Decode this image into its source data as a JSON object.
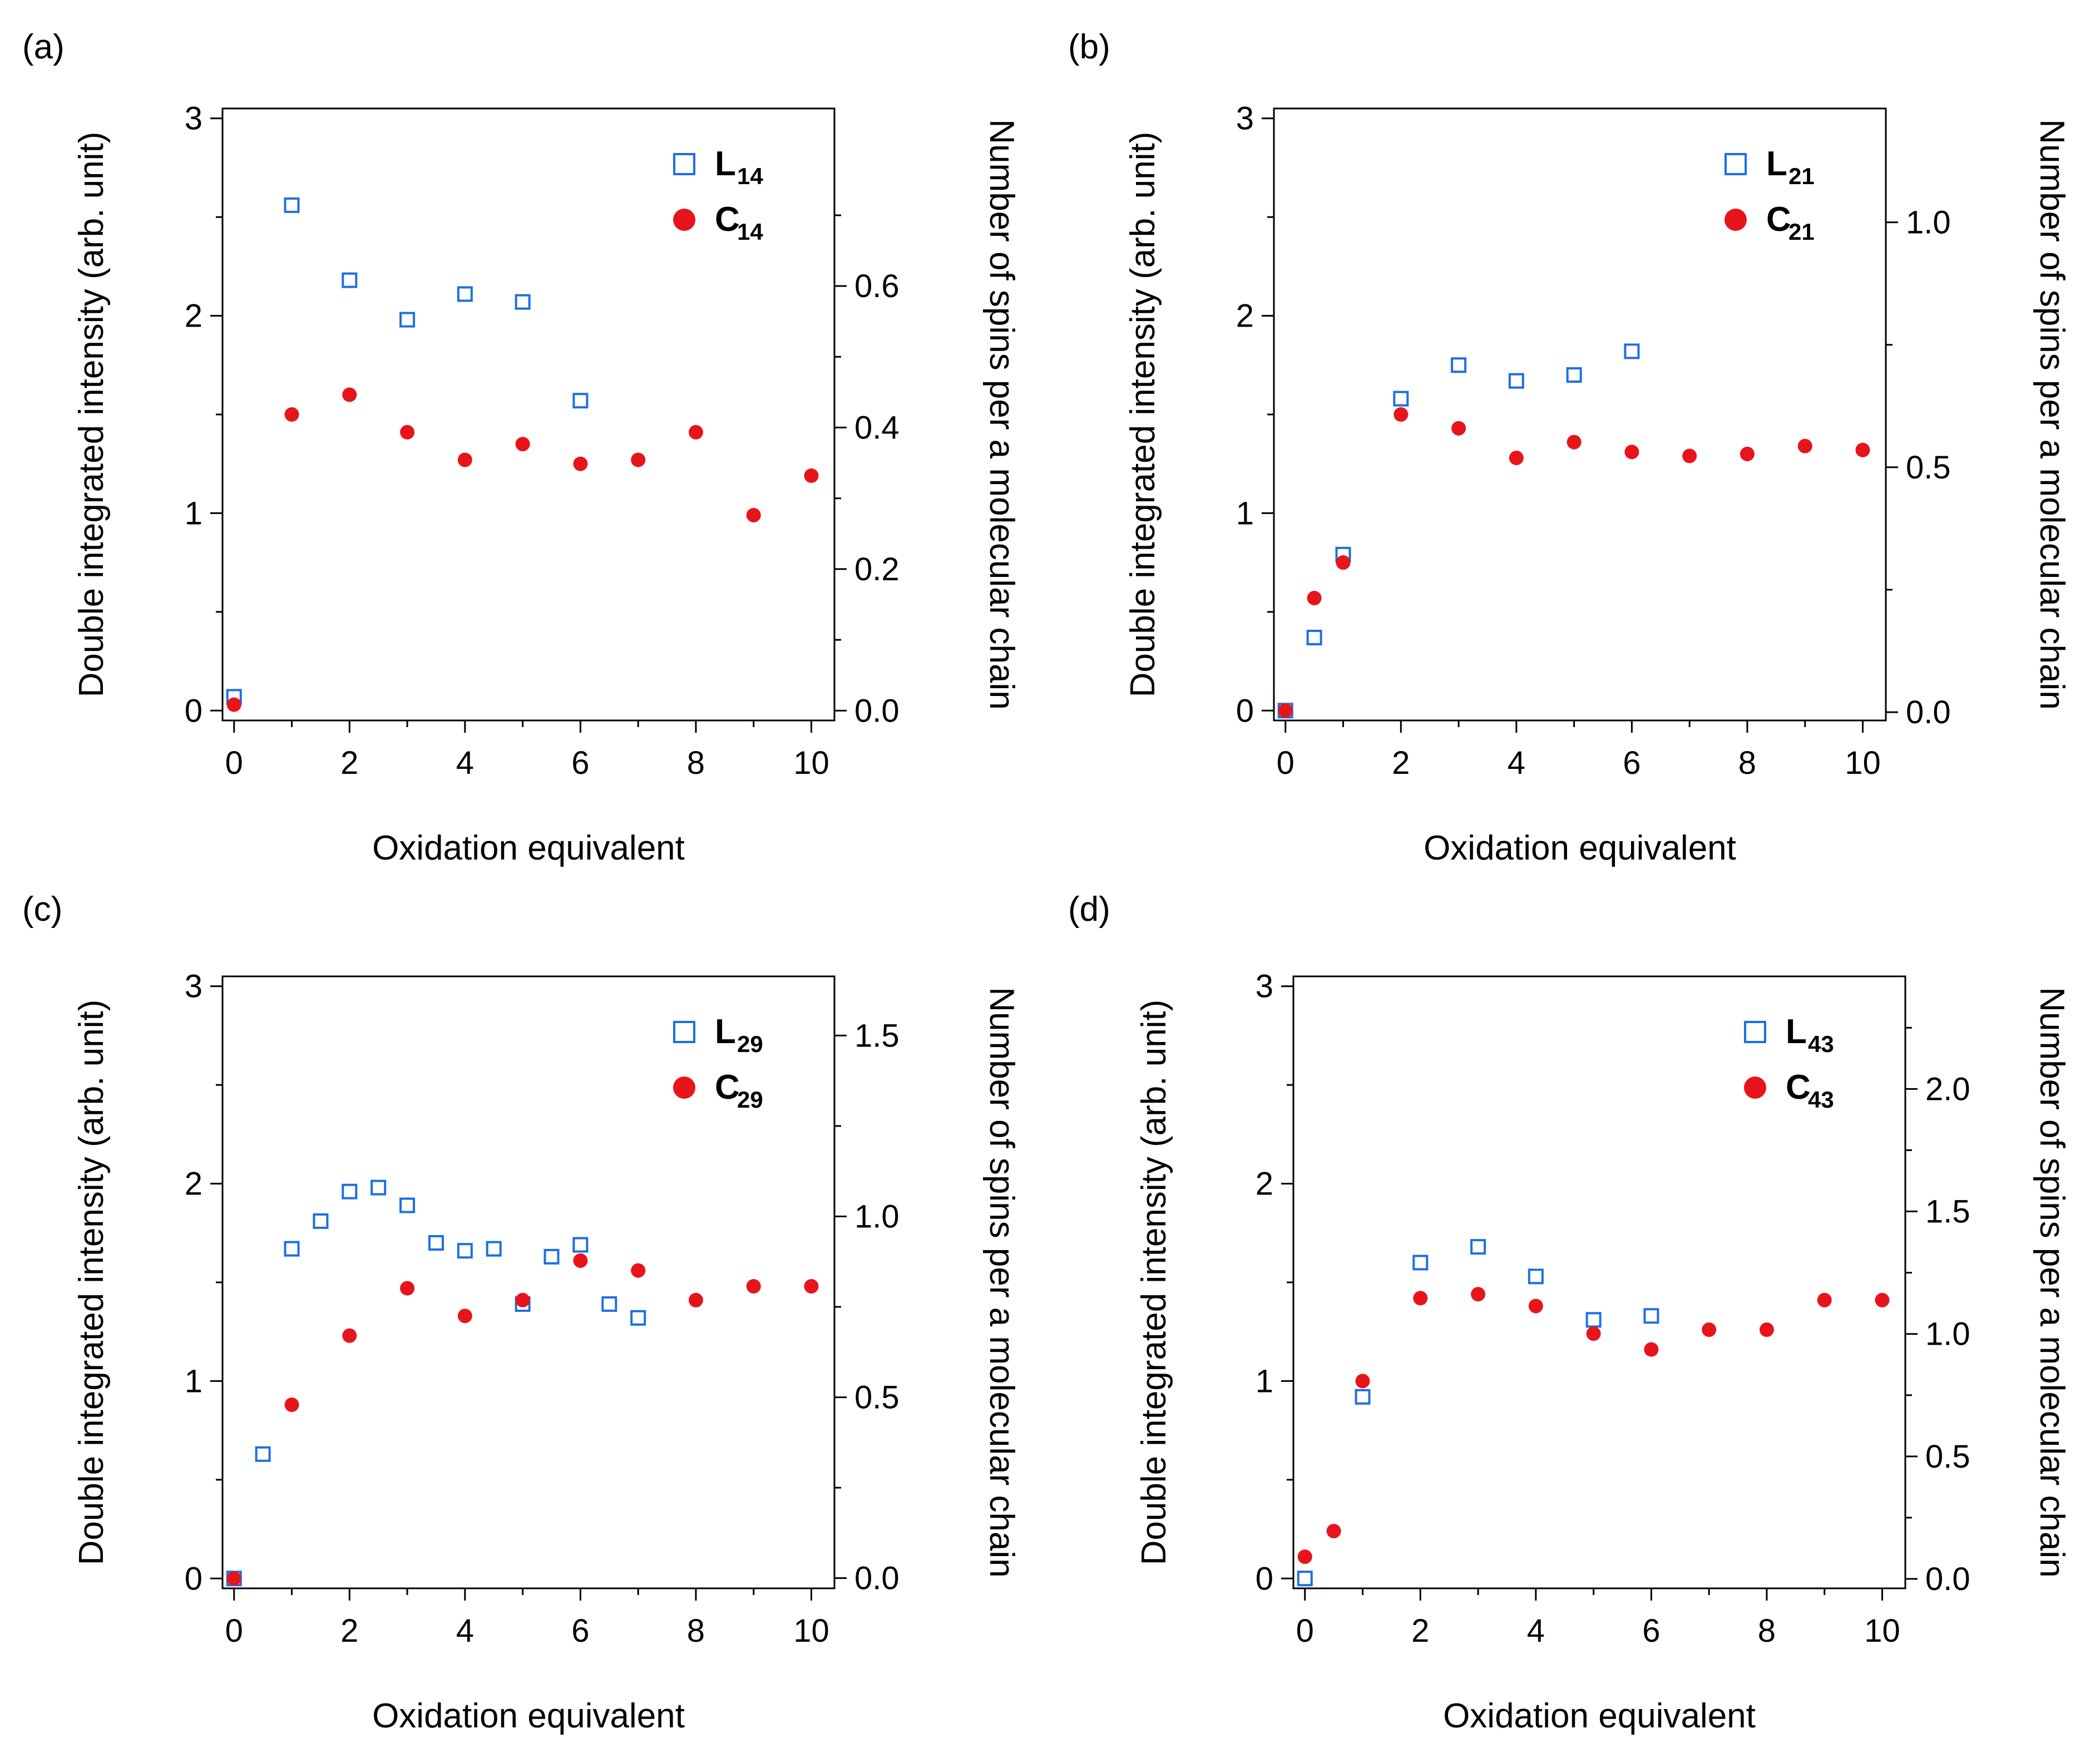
{
  "colors": {
    "L": "#1c6fe6",
    "C": "#e8141b",
    "axis": "#000000"
  },
  "chart_data": [
    {
      "type": "scatter",
      "panel": "(a)",
      "xlabel": "Oxidation equivalent",
      "ylabel": "Double integrated intensity (arb. unit)",
      "y2label": "Number of spins per a molecular chain",
      "xlim": [
        -0.2,
        10.4
      ],
      "ylim": [
        -0.05,
        3.05
      ],
      "y2lim": [
        -0.0139,
        0.8509
      ],
      "xticks": [
        "0",
        "2",
        "4",
        "6",
        "8",
        "10"
      ],
      "yticks": [
        "0",
        "1",
        "2",
        "3"
      ],
      "y2ticks": [
        "0.0",
        "0.2",
        "0.4",
        "0.6"
      ],
      "y2major": [
        0.0,
        0.2,
        0.4,
        0.6
      ],
      "y2minor": [
        0.1,
        0.3,
        0.5,
        0.7
      ],
      "series": [
        {
          "name": "L",
          "sub": "14",
          "marker": "open-square",
          "x": [
            0,
            1,
            2,
            3,
            4,
            5,
            6
          ],
          "y": [
            0.07,
            2.56,
            2.18,
            1.98,
            2.11,
            2.07,
            1.57
          ]
        },
        {
          "name": "C",
          "sub": "14",
          "marker": "filled-circle",
          "x": [
            0,
            1,
            2,
            3,
            4,
            5,
            6,
            7,
            8,
            9,
            10
          ],
          "y": [
            0.03,
            1.5,
            1.6,
            1.41,
            1.27,
            1.35,
            1.25,
            1.27,
            1.41,
            0.99,
            1.19
          ]
        }
      ]
    },
    {
      "type": "scatter",
      "panel": "(b)",
      "xlabel": "Oxidation equivalent",
      "ylabel": "Double integrated intensity (arb. unit)",
      "y2label": "Number of spins per a molecular chain",
      "xlim": [
        -0.2,
        10.4
      ],
      "ylim": [
        -0.05,
        3.05
      ],
      "y2lim": [
        -0.0169,
        1.2324
      ],
      "xticks": [
        "0",
        "2",
        "4",
        "6",
        "8",
        "10"
      ],
      "yticks": [
        "0",
        "1",
        "2",
        "3"
      ],
      "y2ticks": [
        "0.0",
        "0.5",
        "1.0"
      ],
      "y2major": [
        0.0,
        0.5,
        1.0
      ],
      "y2minor": [
        0.25,
        0.75
      ],
      "series": [
        {
          "name": "L",
          "sub": "21",
          "marker": "open-square",
          "x": [
            0,
            0.5,
            1,
            2,
            3,
            4,
            5,
            6
          ],
          "y": [
            0.0,
            0.37,
            0.79,
            1.58,
            1.75,
            1.67,
            1.7,
            1.82
          ]
        },
        {
          "name": "C",
          "sub": "21",
          "marker": "filled-circle",
          "x": [
            0,
            0.5,
            1,
            2,
            3,
            4,
            5,
            6,
            7,
            8,
            9,
            10
          ],
          "y": [
            0.0,
            0.57,
            0.75,
            1.5,
            1.43,
            1.28,
            1.36,
            1.31,
            1.29,
            1.3,
            1.34,
            1.32
          ]
        }
      ]
    },
    {
      "type": "scatter",
      "panel": "(c)",
      "xlabel": "Oxidation equivalent",
      "ylabel": "Double integrated intensity (arb. unit)",
      "y2label": "Number of spins per a molecular chain",
      "xlim": [
        -0.2,
        10.4
      ],
      "ylim": [
        -0.05,
        3.05
      ],
      "y2lim": [
        -0.0282,
        1.6637
      ],
      "xticks": [
        "0",
        "2",
        "4",
        "6",
        "8",
        "10"
      ],
      "yticks": [
        "0",
        "1",
        "2",
        "3"
      ],
      "y2ticks": [
        "0.0",
        "0.5",
        "1.0",
        "1.5"
      ],
      "y2major": [
        0.0,
        0.5,
        1.0,
        1.5
      ],
      "y2minor": [
        0.25,
        0.75,
        1.25
      ],
      "series": [
        {
          "name": "L",
          "sub": "29",
          "marker": "open-square",
          "x": [
            0,
            0.5,
            1,
            1.5,
            2,
            2.5,
            3,
            3.5,
            4,
            4.5,
            5,
            5.5,
            6,
            6.5,
            7
          ],
          "y": [
            0.0,
            0.63,
            1.67,
            1.81,
            1.96,
            1.98,
            1.89,
            1.7,
            1.66,
            1.67,
            1.39,
            1.63,
            1.69,
            1.39,
            1.32
          ]
        },
        {
          "name": "C",
          "sub": "29",
          "marker": "filled-circle",
          "x": [
            0,
            1,
            2,
            3,
            4,
            5,
            6,
            7,
            8,
            9,
            10
          ],
          "y": [
            0.0,
            0.88,
            1.23,
            1.47,
            1.33,
            1.41,
            1.61,
            1.56,
            1.41,
            1.48,
            1.48
          ]
        }
      ]
    },
    {
      "type": "scatter",
      "panel": "(d)",
      "xlabel": "Oxidation equivalent",
      "ylabel": "Double integrated intensity (arb. unit)",
      "y2label": "Number of spins per a molecular chain",
      "xlim": [
        -0.2,
        10.4
      ],
      "ylim": [
        -0.05,
        3.05
      ],
      "y2lim": [
        -0.0386,
        2.4597
      ],
      "xticks": [
        "0",
        "2",
        "4",
        "6",
        "8",
        "10"
      ],
      "yticks": [
        "0",
        "1",
        "2",
        "3"
      ],
      "y2ticks": [
        "0.0",
        "0.5",
        "1.0",
        "1.5",
        "2.0"
      ],
      "y2major": [
        0.0,
        0.5,
        1.0,
        1.5,
        2.0
      ],
      "y2minor": [
        0.25,
        0.75,
        1.25,
        1.75,
        2.25
      ],
      "series": [
        {
          "name": "L",
          "sub": "43",
          "marker": "open-square",
          "x": [
            0,
            1,
            2,
            3,
            4,
            5,
            6
          ],
          "y": [
            0.0,
            0.92,
            1.6,
            1.68,
            1.53,
            1.31,
            1.33
          ]
        },
        {
          "name": "C",
          "sub": "43",
          "marker": "filled-circle",
          "x": [
            0,
            0.5,
            1,
            2,
            3,
            4,
            5,
            6,
            7,
            8,
            9,
            10
          ],
          "y": [
            0.11,
            0.24,
            1.0,
            1.42,
            1.44,
            1.38,
            1.24,
            1.16,
            1.26,
            1.26,
            1.41,
            1.41
          ]
        }
      ]
    }
  ]
}
